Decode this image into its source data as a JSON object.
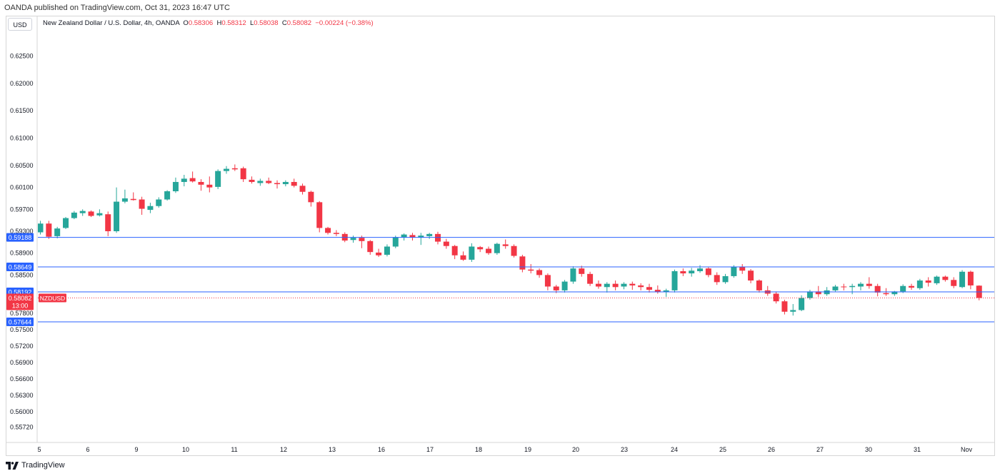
{
  "header": {
    "published": "OANDA published on TradingView.com, Oct 31, 2023 16:47 UTC",
    "currency_button": "USD",
    "symbol_desc": "New Zealand Dollar / U.S. Dollar, 4h, OANDA",
    "ohlc": {
      "o_label": "O",
      "o": "0.58306",
      "h_label": "H",
      "h": "0.58312",
      "l_label": "L",
      "l": "0.58038",
      "c_label": "C",
      "c": "0.58082",
      "change": "−0.00224 (−0.38%)"
    }
  },
  "footer": {
    "brand": "TradingView",
    "logo_icon": "tradingview-logo-icon"
  },
  "colors": {
    "up": "#26a69a",
    "down": "#f23645",
    "level_line": "#2962ff",
    "level_label_bg": "#2962ff",
    "price_label_bg": "#f23645",
    "axis_text": "#131722"
  },
  "chart_data": {
    "type": "candlestick",
    "timeframe": "4h",
    "ylim": [
      0.5552,
      0.6295
    ],
    "y_ticks": [
      "0.62500",
      "0.62000",
      "0.61500",
      "0.61000",
      "0.60500",
      "0.60100",
      "0.59700",
      "0.59300",
      "0.58900",
      "0.58500",
      "0.57800",
      "0.57500",
      "0.57200",
      "0.56900",
      "0.56600",
      "0.56300",
      "0.56000",
      "0.55720"
    ],
    "x_labels": [
      "5",
      "6",
      "9",
      "10",
      "11",
      "12",
      "13",
      "16",
      "17",
      "18",
      "19",
      "20",
      "23",
      "24",
      "25",
      "26",
      "27",
      "30",
      "31",
      "Nov"
    ],
    "levels": [
      {
        "value": 0.59188,
        "label": "0.59188"
      },
      {
        "value": 0.58649,
        "label": "0.58649"
      },
      {
        "value": 0.58192,
        "label": "0.58192"
      },
      {
        "value": 0.57644,
        "label": "0.57644"
      }
    ],
    "current_price": {
      "value": 0.58082,
      "label": "0.58082",
      "countdown": "13:00",
      "symbol": "NZDUSD"
    },
    "candles": [
      [
        0.5928,
        0.5949,
        0.5924,
        0.5944
      ],
      [
        0.5944,
        0.5949,
        0.5916,
        0.592
      ],
      [
        0.5921,
        0.5938,
        0.5917,
        0.5935
      ],
      [
        0.5936,
        0.5956,
        0.5934,
        0.5954
      ],
      [
        0.5954,
        0.5967,
        0.5952,
        0.5964
      ],
      [
        0.5963,
        0.597,
        0.5958,
        0.5967
      ],
      [
        0.5966,
        0.5968,
        0.5956,
        0.5958
      ],
      [
        0.5959,
        0.597,
        0.5957,
        0.5963
      ],
      [
        0.5961,
        0.5966,
        0.5921,
        0.593
      ],
      [
        0.593,
        0.601,
        0.5927,
        0.5984
      ],
      [
        0.5984,
        0.6006,
        0.5981,
        0.599
      ],
      [
        0.5989,
        0.6001,
        0.5986,
        0.5987
      ],
      [
        0.5988,
        0.5993,
        0.596,
        0.5971
      ],
      [
        0.5969,
        0.5982,
        0.5963,
        0.5976
      ],
      [
        0.5976,
        0.5992,
        0.5973,
        0.5988
      ],
      [
        0.5988,
        0.6005,
        0.5986,
        0.6003
      ],
      [
        0.6003,
        0.6028,
        0.6,
        0.602
      ],
      [
        0.602,
        0.6033,
        0.6012,
        0.6026
      ],
      [
        0.6027,
        0.6039,
        0.6019,
        0.6021
      ],
      [
        0.602,
        0.6025,
        0.6004,
        0.6015
      ],
      [
        0.6015,
        0.603,
        0.6001,
        0.601
      ],
      [
        0.6011,
        0.6043,
        0.6007,
        0.604
      ],
      [
        0.604,
        0.6049,
        0.6035,
        0.6044
      ],
      [
        0.6045,
        0.6052,
        0.604,
        0.6043
      ],
      [
        0.6045,
        0.6048,
        0.602,
        0.6025
      ],
      [
        0.6024,
        0.603,
        0.6017,
        0.602
      ],
      [
        0.6018,
        0.6026,
        0.6013,
        0.6022
      ],
      [
        0.6022,
        0.6028,
        0.6016,
        0.6018
      ],
      [
        0.6018,
        0.6023,
        0.6008,
        0.6016
      ],
      [
        0.6016,
        0.6023,
        0.6012,
        0.602
      ],
      [
        0.602,
        0.6026,
        0.601,
        0.6013
      ],
      [
        0.6013,
        0.6017,
        0.5997,
        0.6002
      ],
      [
        0.6002,
        0.6004,
        0.5975,
        0.5983
      ],
      [
        0.5983,
        0.5985,
        0.5928,
        0.5936
      ],
      [
        0.5936,
        0.5938,
        0.5924,
        0.5927
      ],
      [
        0.5927,
        0.5932,
        0.5921,
        0.5925
      ],
      [
        0.5925,
        0.5928,
        0.591,
        0.5913
      ],
      [
        0.5914,
        0.5922,
        0.5909,
        0.5918
      ],
      [
        0.5918,
        0.5922,
        0.5899,
        0.5912
      ],
      [
        0.5912,
        0.5914,
        0.5887,
        0.5892
      ],
      [
        0.5891,
        0.5898,
        0.5883,
        0.5886
      ],
      [
        0.5887,
        0.5906,
        0.5884,
        0.5902
      ],
      [
        0.5902,
        0.5922,
        0.5899,
        0.5919
      ],
      [
        0.5919,
        0.5926,
        0.5913,
        0.5924
      ],
      [
        0.5923,
        0.5927,
        0.5913,
        0.5919
      ],
      [
        0.5919,
        0.5927,
        0.5905,
        0.5922
      ],
      [
        0.5921,
        0.5927,
        0.5916,
        0.5925
      ],
      [
        0.5925,
        0.5929,
        0.5906,
        0.5911
      ],
      [
        0.5911,
        0.5916,
        0.5898,
        0.5903
      ],
      [
        0.5903,
        0.5905,
        0.5879,
        0.5886
      ],
      [
        0.5886,
        0.5893,
        0.5876,
        0.5878
      ],
      [
        0.5878,
        0.5908,
        0.5874,
        0.5902
      ],
      [
        0.5901,
        0.5903,
        0.5892,
        0.5897
      ],
      [
        0.5898,
        0.5902,
        0.5887,
        0.589
      ],
      [
        0.589,
        0.5909,
        0.5887,
        0.5907
      ],
      [
        0.5906,
        0.5915,
        0.5898,
        0.5903
      ],
      [
        0.5903,
        0.5906,
        0.5882,
        0.5885
      ],
      [
        0.5884,
        0.5887,
        0.5855,
        0.586
      ],
      [
        0.586,
        0.587,
        0.5853,
        0.5858
      ],
      [
        0.5859,
        0.5862,
        0.5845,
        0.585
      ],
      [
        0.585,
        0.5853,
        0.5822,
        0.5829
      ],
      [
        0.5829,
        0.5832,
        0.5817,
        0.5822
      ],
      [
        0.5822,
        0.5841,
        0.5818,
        0.5838
      ],
      [
        0.5838,
        0.5866,
        0.5834,
        0.5862
      ],
      [
        0.5862,
        0.5867,
        0.5847,
        0.5852
      ],
      [
        0.5852,
        0.5856,
        0.583,
        0.5834
      ],
      [
        0.5834,
        0.584,
        0.5825,
        0.5829
      ],
      [
        0.5828,
        0.5837,
        0.5818,
        0.5834
      ],
      [
        0.5834,
        0.584,
        0.5822,
        0.5828
      ],
      [
        0.5829,
        0.5837,
        0.5824,
        0.5834
      ],
      [
        0.5834,
        0.5838,
        0.5823,
        0.5831
      ],
      [
        0.5831,
        0.5835,
        0.5822,
        0.5828
      ],
      [
        0.5828,
        0.5834,
        0.5818,
        0.5823
      ],
      [
        0.5823,
        0.5831,
        0.5816,
        0.5819
      ],
      [
        0.5819,
        0.5825,
        0.581,
        0.5822
      ],
      [
        0.5822,
        0.586,
        0.5818,
        0.5857
      ],
      [
        0.5857,
        0.5862,
        0.5848,
        0.5853
      ],
      [
        0.5853,
        0.5863,
        0.5847,
        0.5858
      ],
      [
        0.5857,
        0.5868,
        0.5854,
        0.5862
      ],
      [
        0.5862,
        0.5864,
        0.5846,
        0.585
      ],
      [
        0.585,
        0.5855,
        0.5832,
        0.5837
      ],
      [
        0.5837,
        0.5852,
        0.5834,
        0.5848
      ],
      [
        0.5848,
        0.5868,
        0.5845,
        0.5865
      ],
      [
        0.5865,
        0.587,
        0.5852,
        0.5858
      ],
      [
        0.5858,
        0.5861,
        0.5835,
        0.584
      ],
      [
        0.584,
        0.5842,
        0.5818,
        0.5822
      ],
      [
        0.5822,
        0.583,
        0.5812,
        0.5816
      ],
      [
        0.5816,
        0.582,
        0.5798,
        0.5802
      ],
      [
        0.5802,
        0.5805,
        0.5778,
        0.5783
      ],
      [
        0.5783,
        0.5797,
        0.5776,
        0.5786
      ],
      [
        0.5786,
        0.5813,
        0.5784,
        0.5808
      ],
      [
        0.5808,
        0.5823,
        0.5805,
        0.582
      ],
      [
        0.582,
        0.583,
        0.581,
        0.5815
      ],
      [
        0.5815,
        0.5828,
        0.5812,
        0.5822
      ],
      [
        0.5822,
        0.5832,
        0.582,
        0.5829
      ],
      [
        0.5829,
        0.5834,
        0.5822,
        0.5828
      ],
      [
        0.5828,
        0.5834,
        0.5815,
        0.583
      ],
      [
        0.5829,
        0.5837,
        0.5822,
        0.5834
      ],
      [
        0.5834,
        0.5846,
        0.5825,
        0.583
      ],
      [
        0.583,
        0.5834,
        0.5811,
        0.5818
      ],
      [
        0.5817,
        0.5826,
        0.5812,
        0.5815
      ],
      [
        0.5815,
        0.5821,
        0.5812,
        0.582
      ],
      [
        0.582,
        0.5833,
        0.5817,
        0.583
      ],
      [
        0.583,
        0.5834,
        0.5823,
        0.5827
      ],
      [
        0.5826,
        0.5843,
        0.5823,
        0.584
      ],
      [
        0.584,
        0.5846,
        0.5829,
        0.5836
      ],
      [
        0.5835,
        0.5849,
        0.5832,
        0.5847
      ],
      [
        0.5847,
        0.5849,
        0.5838,
        0.5841
      ],
      [
        0.5841,
        0.5846,
        0.5826,
        0.583
      ],
      [
        0.5828,
        0.5859,
        0.5826,
        0.5856
      ],
      [
        0.5856,
        0.5858,
        0.5824,
        0.5831
      ],
      [
        0.58306,
        0.58312,
        0.58038,
        0.58082
      ]
    ]
  }
}
